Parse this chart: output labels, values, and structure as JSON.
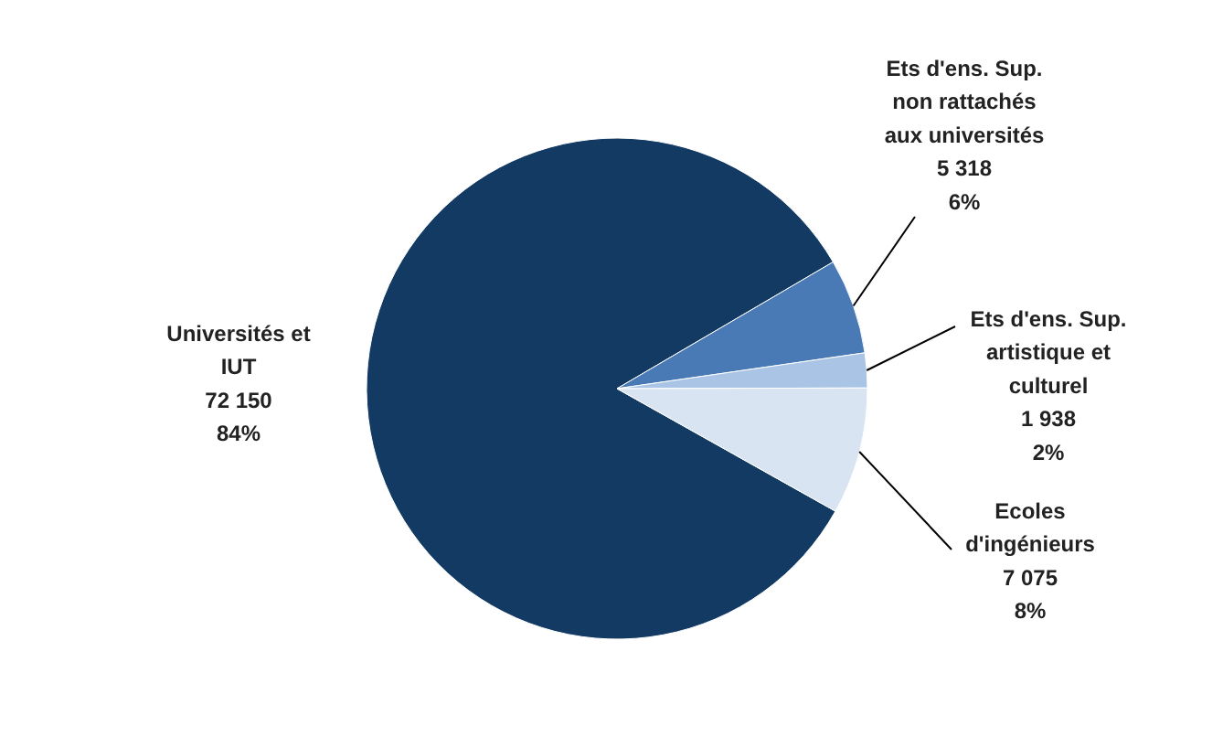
{
  "chart_data": {
    "type": "pie",
    "categories": [
      "Universités et\nIUT",
      "Ets d'ens. Sup.\nnon rattachés\naux universités",
      "Ets d'ens. Sup.\nartistique et\nculturel",
      "Ecoles\nd'ingénieurs"
    ],
    "values": [
      72150,
      5318,
      1938,
      7075
    ],
    "value_labels": [
      "72 150\n84%",
      "5 318\n6%",
      "1 938\n2%",
      "7 075\n8%"
    ],
    "colors": [
      "#133a63",
      "#4a7ab5",
      "#a9c4e4",
      "#d9e4f2"
    ]
  }
}
